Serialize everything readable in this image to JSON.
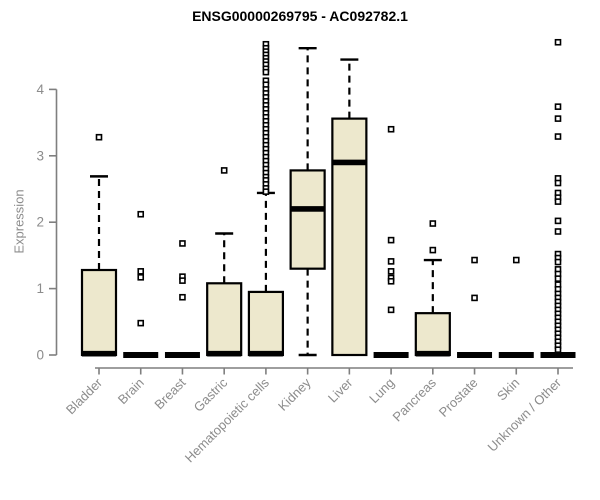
{
  "chart_data": {
    "type": "boxplot",
    "title": "ENSG00000269795 - AC092782.1",
    "ylabel": "Expression",
    "xlabel": "",
    "ylim": [
      0,
      4.75
    ],
    "yticks": [
      0,
      1,
      2,
      3,
      4
    ],
    "grid": false,
    "box_fill": "#ede8cd",
    "box_stroke": "#000000",
    "axis_color": "#7f7f7f",
    "tick_label_color": "#8c8c8c",
    "categories": [
      "Bladder",
      "Brain",
      "Breast",
      "Gastric",
      "Hematopoietic cells",
      "Kidney",
      "Liver",
      "Lung",
      "Pancreas",
      "Prostate",
      "Skin",
      "Unknown / Other"
    ],
    "boxes": [
      {
        "category": "Bladder",
        "q1": 0,
        "median": 0.02,
        "q3": 1.28,
        "whisker_low": 0,
        "whisker_high": 2.69,
        "outliers": [
          3.28
        ]
      },
      {
        "category": "Brain",
        "q1": 0,
        "median": 0,
        "q3": 0,
        "whisker_low": 0,
        "whisker_high": 0,
        "outliers": [
          2.12,
          1.26,
          1.17,
          0.48
        ]
      },
      {
        "category": "Breast",
        "q1": 0,
        "median": 0,
        "q3": 0,
        "whisker_low": 0,
        "whisker_high": 0,
        "outliers": [
          1.68,
          1.18,
          1.12,
          0.87
        ]
      },
      {
        "category": "Gastric",
        "q1": 0,
        "median": 0.02,
        "q3": 1.08,
        "whisker_low": 0,
        "whisker_high": 1.83,
        "outliers": [
          2.78
        ]
      },
      {
        "category": "Hematopoietic cells",
        "q1": 0,
        "median": 0.02,
        "q3": 0.95,
        "whisker_low": 0,
        "whisker_high": 2.44,
        "outliers": [
          4.68,
          4.62,
          4.57,
          4.52,
          4.47,
          4.42,
          4.37,
          4.31,
          4.26,
          4.13,
          4.07,
          4.0,
          3.94,
          3.88,
          3.82,
          3.76,
          3.7,
          3.64,
          3.58,
          3.52,
          3.46,
          3.4,
          3.34,
          3.28,
          3.22,
          3.16,
          3.1,
          3.04,
          2.98,
          2.92,
          2.86,
          2.8,
          2.74,
          2.68,
          2.63,
          2.57,
          2.51,
          2.46
        ]
      },
      {
        "category": "Kidney",
        "q1": 1.3,
        "median": 2.2,
        "q3": 2.78,
        "whisker_low": 0,
        "whisker_high": 4.62,
        "outliers": []
      },
      {
        "category": "Liver",
        "q1": 0,
        "median": 2.9,
        "q3": 3.56,
        "whisker_low": 0,
        "whisker_high": 4.45,
        "outliers": []
      },
      {
        "category": "Lung",
        "q1": 0,
        "median": 0,
        "q3": 0,
        "whisker_low": 0,
        "whisker_high": 0,
        "outliers": [
          3.4,
          1.73,
          1.41,
          1.26,
          1.16,
          1.11,
          0.68
        ]
      },
      {
        "category": "Pancreas",
        "q1": 0,
        "median": 0.02,
        "q3": 0.63,
        "whisker_low": 0,
        "whisker_high": 1.43,
        "outliers": [
          1.98,
          1.58
        ]
      },
      {
        "category": "Prostate",
        "q1": 0,
        "median": 0,
        "q3": 0,
        "whisker_low": 0,
        "whisker_high": 0,
        "outliers": [
          1.43,
          0.86
        ]
      },
      {
        "category": "Skin",
        "q1": 0,
        "median": 0,
        "q3": 0,
        "whisker_low": 0,
        "whisker_high": 0,
        "outliers": [
          1.43
        ]
      },
      {
        "category": "Unknown / Other",
        "q1": 0,
        "median": 0,
        "q3": 0,
        "whisker_low": 0,
        "whisker_high": 0,
        "outliers": [
          4.71,
          3.74,
          3.56,
          3.29,
          2.66,
          2.59,
          2.44,
          2.37,
          2.31,
          2.02,
          1.86,
          1.52,
          1.46,
          1.4,
          1.29,
          1.22,
          1.15,
          1.06,
          0.99,
          0.92,
          0.86,
          0.8,
          0.74,
          0.68,
          0.62,
          0.56,
          0.5,
          0.44,
          0.38,
          0.32,
          0.26,
          0.2,
          0.14,
          0.08
        ]
      }
    ]
  }
}
